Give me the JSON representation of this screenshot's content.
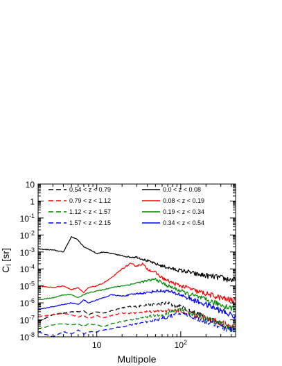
{
  "chart_data": {
    "type": "line",
    "title": "",
    "xlabel": "Multipole",
    "ylabel_main": "C",
    "ylabel_sub": "l",
    "ylabel_suffix": " [sr]",
    "xscale": "log",
    "yscale": "log",
    "xlim": [
      2,
      450
    ],
    "ylim": [
      1e-08,
      10
    ],
    "grid": false,
    "legend": "top",
    "xticks": [
      {
        "value": 10,
        "base": "10",
        "exp": ""
      },
      {
        "value": 100,
        "base": "10",
        "exp": "2"
      }
    ],
    "yticks": [
      {
        "value": 10,
        "base": "10",
        "exp": ""
      },
      {
        "value": 1,
        "base": "1",
        "exp": ""
      },
      {
        "value": 0.1,
        "base": "10",
        "exp": "-1"
      },
      {
        "value": 0.01,
        "base": "10",
        "exp": "-2"
      },
      {
        "value": 0.001,
        "base": "10",
        "exp": "-3"
      },
      {
        "value": 0.0001,
        "base": "10",
        "exp": "-4"
      },
      {
        "value": 1e-05,
        "base": "10",
        "exp": "-5"
      },
      {
        "value": 1e-06,
        "base": "10",
        "exp": "-6"
      },
      {
        "value": 1e-07,
        "base": "10",
        "exp": "-7"
      },
      {
        "value": 1e-08,
        "base": "10",
        "exp": "-8"
      }
    ],
    "series": [
      {
        "name": "0.54 < z < 0.79",
        "color": "#000000",
        "dash": "dashed",
        "points": [
          [
            2,
            8e-08
          ],
          [
            3,
            2e-07
          ],
          [
            4,
            2.5e-07
          ],
          [
            5,
            3e-07
          ],
          [
            6,
            3e-07
          ],
          [
            7,
            3.5e-07
          ],
          [
            8,
            2e-07
          ],
          [
            10,
            3e-07
          ],
          [
            12,
            2.5e-07
          ],
          [
            15,
            3.5e-07
          ],
          [
            20,
            5e-07
          ],
          [
            25,
            6e-07
          ],
          [
            30,
            6e-07
          ],
          [
            40,
            8e-07
          ],
          [
            50,
            8e-07
          ],
          [
            60,
            9e-07
          ],
          [
            70,
            1e-06
          ],
          [
            80,
            7e-07
          ],
          [
            100,
            6e-07
          ],
          [
            120,
            4e-07
          ],
          [
            150,
            2.5e-07
          ],
          [
            200,
            1.5e-07
          ],
          [
            250,
            9e-08
          ],
          [
            300,
            6e-08
          ],
          [
            350,
            4e-08
          ],
          [
            400,
            3e-08
          ],
          [
            450,
            2.5e-08
          ]
        ]
      },
      {
        "name": "0.0 < z < 0.08",
        "color": "#000000",
        "dash": "solid",
        "points": [
          [
            2,
            0.0015
          ],
          [
            3,
            0.0013
          ],
          [
            4,
            0.001
          ],
          [
            5,
            0.008
          ],
          [
            6,
            0.005
          ],
          [
            7,
            0.002
          ],
          [
            8,
            0.0015
          ],
          [
            10,
            0.0008
          ],
          [
            12,
            0.001
          ],
          [
            15,
            0.0008
          ],
          [
            20,
            0.0006
          ],
          [
            25,
            0.0005
          ],
          [
            30,
            0.0005
          ],
          [
            40,
            0.0003
          ],
          [
            50,
            0.0002
          ],
          [
            60,
            0.00015
          ],
          [
            70,
            0.00012
          ],
          [
            80,
            0.0001
          ],
          [
            100,
            8e-05
          ],
          [
            120,
            7e-05
          ],
          [
            150,
            5e-05
          ],
          [
            200,
            4e-05
          ],
          [
            250,
            3.5e-05
          ],
          [
            300,
            3e-05
          ],
          [
            350,
            2.5e-05
          ],
          [
            400,
            2.3e-05
          ],
          [
            450,
            2.2e-05
          ]
        ]
      },
      {
        "name": "0.79 < z < 1.12",
        "color": "#ff0000",
        "dash": "dashed",
        "points": [
          [
            2,
            1.5e-07
          ],
          [
            3,
            2e-07
          ],
          [
            4,
            2.5e-07
          ],
          [
            5,
            2e-07
          ],
          [
            6,
            1.5e-07
          ],
          [
            7,
            1.8e-07
          ],
          [
            8,
            1.2e-07
          ],
          [
            10,
            1.8e-07
          ],
          [
            12,
            1.3e-07
          ],
          [
            15,
            1.8e-07
          ],
          [
            20,
            2.5e-07
          ],
          [
            25,
            2.5e-07
          ],
          [
            30,
            2.5e-07
          ],
          [
            40,
            3e-07
          ],
          [
            50,
            3e-07
          ],
          [
            60,
            3.5e-07
          ],
          [
            70,
            3.5e-07
          ],
          [
            80,
            4e-07
          ],
          [
            100,
            3.5e-07
          ],
          [
            120,
            2.5e-07
          ],
          [
            150,
            1.8e-07
          ],
          [
            200,
            1.2e-07
          ],
          [
            250,
            9e-08
          ],
          [
            300,
            7e-08
          ],
          [
            350,
            5e-08
          ],
          [
            400,
            4e-08
          ],
          [
            450,
            3.5e-08
          ]
        ]
      },
      {
        "name": "0.08 < z < 0.19",
        "color": "#ff0000",
        "dash": "solid",
        "points": [
          [
            2,
            1e-05
          ],
          [
            3,
            8e-06
          ],
          [
            4,
            1e-05
          ],
          [
            5,
            6e-06
          ],
          [
            6,
            8e-06
          ],
          [
            7,
            4e-06
          ],
          [
            8,
            8e-06
          ],
          [
            10,
            1e-05
          ],
          [
            12,
            1.5e-05
          ],
          [
            15,
            3e-05
          ],
          [
            20,
            0.0001
          ],
          [
            25,
            0.0002
          ],
          [
            30,
            0.00015
          ],
          [
            35,
            0.0002
          ],
          [
            40,
            0.0001
          ],
          [
            50,
            6e-05
          ],
          [
            60,
            3e-05
          ],
          [
            70,
            2e-05
          ],
          [
            80,
            1.5e-05
          ],
          [
            100,
            1e-05
          ],
          [
            120,
            8e-06
          ],
          [
            150,
            5e-06
          ],
          [
            200,
            3.5e-06
          ],
          [
            250,
            2.5e-06
          ],
          [
            300,
            2e-06
          ],
          [
            350,
            1.6e-06
          ],
          [
            400,
            1.4e-06
          ],
          [
            450,
            1.3e-06
          ]
        ]
      },
      {
        "name": "1.12 < z < 1.57",
        "color": "#008800",
        "dash": "dashed",
        "points": [
          [
            2,
            3e-08
          ],
          [
            3,
            5e-08
          ],
          [
            4,
            6e-08
          ],
          [
            5,
            5e-08
          ],
          [
            6,
            6e-08
          ],
          [
            7,
            4e-08
          ],
          [
            8,
            6e-08
          ],
          [
            10,
            5e-08
          ],
          [
            12,
            4e-08
          ],
          [
            15,
            6e-08
          ],
          [
            20,
            8e-08
          ],
          [
            25,
            1e-07
          ],
          [
            30,
            1.2e-07
          ],
          [
            40,
            1.5e-07
          ],
          [
            50,
            1.8e-07
          ],
          [
            60,
            2e-07
          ],
          [
            70,
            2.5e-07
          ],
          [
            80,
            3e-07
          ],
          [
            100,
            4e-07
          ],
          [
            120,
            3e-07
          ],
          [
            150,
            2e-07
          ],
          [
            200,
            1.2e-07
          ],
          [
            250,
            8e-08
          ],
          [
            300,
            6e-08
          ],
          [
            350,
            4e-08
          ],
          [
            400,
            3e-08
          ],
          [
            450,
            2.5e-08
          ]
        ]
      },
      {
        "name": "0.19 < z < 0.34",
        "color": "#008800",
        "dash": "solid",
        "points": [
          [
            2,
            1.5e-06
          ],
          [
            3,
            2e-06
          ],
          [
            4,
            3e-06
          ],
          [
            5,
            3e-06
          ],
          [
            6,
            2e-06
          ],
          [
            7,
            3e-06
          ],
          [
            8,
            4e-06
          ],
          [
            10,
            5e-06
          ],
          [
            12,
            6e-06
          ],
          [
            15,
            8e-06
          ],
          [
            20,
            1e-05
          ],
          [
            25,
            1.2e-05
          ],
          [
            30,
            1.5e-05
          ],
          [
            40,
            2e-05
          ],
          [
            50,
            2.5e-05
          ],
          [
            60,
            1.5e-05
          ],
          [
            70,
            1e-05
          ],
          [
            80,
            8e-06
          ],
          [
            100,
            5e-06
          ],
          [
            120,
            3.5e-06
          ],
          [
            150,
            2.5e-06
          ],
          [
            200,
            1.5e-06
          ],
          [
            250,
            1e-06
          ],
          [
            300,
            8e-07
          ],
          [
            350,
            6e-07
          ],
          [
            400,
            5e-07
          ],
          [
            450,
            4.5e-07
          ]
        ]
      },
      {
        "name": "1.57 < z < 2.15",
        "color": "#0000ff",
        "dash": "dashed",
        "points": [
          [
            2,
            2e-08
          ],
          [
            3,
            1e-08
          ],
          [
            4,
            2e-08
          ],
          [
            5,
            1.5e-08
          ],
          [
            6,
            2.5e-08
          ],
          [
            7,
            1.5e-08
          ],
          [
            8,
            2e-08
          ],
          [
            10,
            2e-08
          ],
          [
            12,
            2.5e-08
          ],
          [
            15,
            3e-08
          ],
          [
            20,
            4e-08
          ],
          [
            25,
            5e-08
          ],
          [
            30,
            6e-08
          ],
          [
            40,
            8e-08
          ],
          [
            50,
            1e-07
          ],
          [
            60,
            1.2e-07
          ],
          [
            70,
            1.5e-07
          ],
          [
            80,
            1.8e-07
          ],
          [
            100,
            2.5e-07
          ],
          [
            120,
            1.8e-07
          ],
          [
            150,
            1.2e-07
          ],
          [
            200,
            8e-08
          ],
          [
            250,
            6e-08
          ],
          [
            300,
            4e-08
          ],
          [
            350,
            3e-08
          ],
          [
            400,
            2.5e-08
          ],
          [
            450,
            2e-08
          ]
        ]
      },
      {
        "name": "0.34 < z < 0.54",
        "color": "#0000ff",
        "dash": "solid",
        "points": [
          [
            2,
            4e-07
          ],
          [
            3,
            6e-07
          ],
          [
            4,
            8e-07
          ],
          [
            5,
            1e-06
          ],
          [
            6,
            8e-07
          ],
          [
            7,
            1.5e-06
          ],
          [
            8,
            1e-06
          ],
          [
            10,
            1.5e-06
          ],
          [
            12,
            2e-06
          ],
          [
            15,
            3e-06
          ],
          [
            20,
            2.5e-06
          ],
          [
            25,
            3e-06
          ],
          [
            30,
            3.5e-06
          ],
          [
            40,
            4e-06
          ],
          [
            50,
            5e-06
          ],
          [
            60,
            5e-06
          ],
          [
            70,
            5e-06
          ],
          [
            80,
            4e-06
          ],
          [
            100,
            3e-06
          ],
          [
            120,
            2e-06
          ],
          [
            150,
            1.3e-06
          ],
          [
            200,
            8e-07
          ],
          [
            250,
            5e-07
          ],
          [
            300,
            3.5e-07
          ],
          [
            350,
            2.5e-07
          ],
          [
            400,
            2e-07
          ],
          [
            450,
            1.5e-07
          ]
        ]
      }
    ]
  }
}
